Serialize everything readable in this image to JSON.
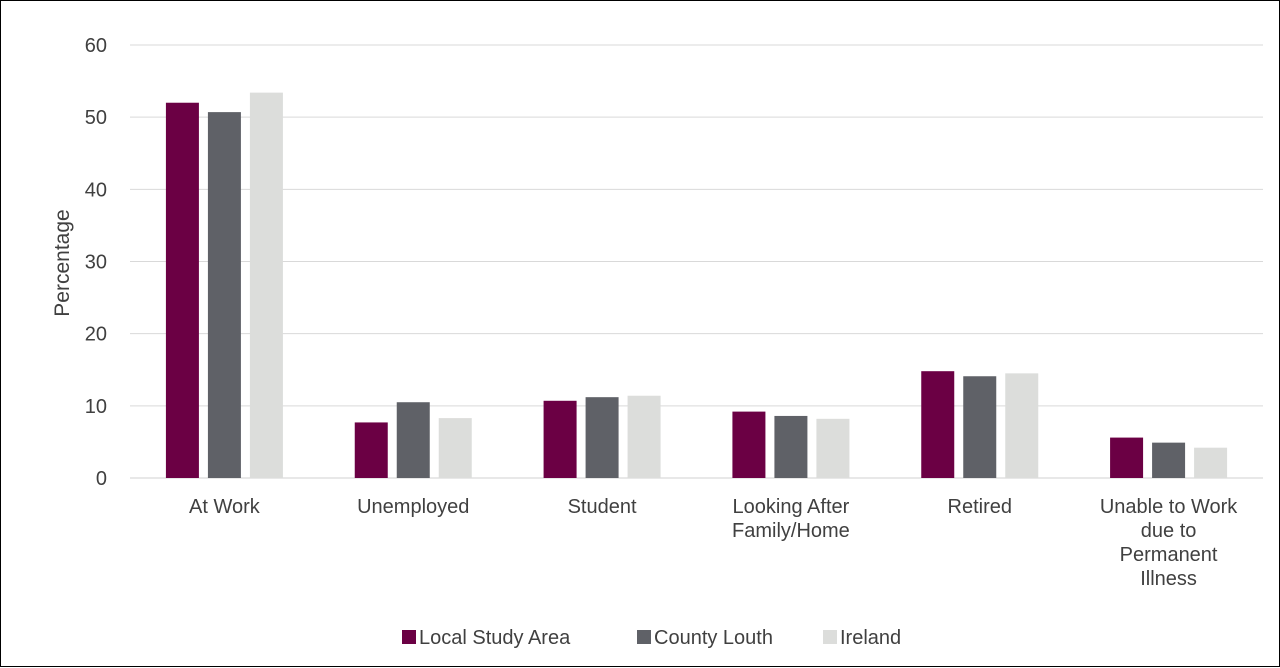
{
  "chart_data": {
    "type": "bar",
    "title": "",
    "xlabel": "",
    "ylabel": "Percentage",
    "ylim": [
      0,
      60
    ],
    "yticks": [
      0,
      10,
      20,
      30,
      40,
      50,
      60
    ],
    "grid": true,
    "legend_position": "bottom",
    "categories": [
      [
        "At Work"
      ],
      [
        "Unemployed"
      ],
      [
        "Student"
      ],
      [
        "Looking After",
        "Family/Home"
      ],
      [
        "Retired"
      ],
      [
        "Unable to Work",
        "due to",
        "Permanent",
        "Illness"
      ]
    ],
    "series": [
      {
        "name": "Local Study Area",
        "color": "#6b0044",
        "values": [
          52.0,
          7.7,
          10.7,
          9.2,
          14.8,
          5.6
        ]
      },
      {
        "name": "County Louth",
        "color": "#5f6167",
        "values": [
          50.7,
          10.5,
          11.2,
          8.6,
          14.1,
          4.9
        ]
      },
      {
        "name": "Ireland",
        "color": "#dcdddb",
        "values": [
          53.4,
          8.3,
          11.4,
          8.2,
          14.5,
          4.2
        ]
      }
    ]
  }
}
